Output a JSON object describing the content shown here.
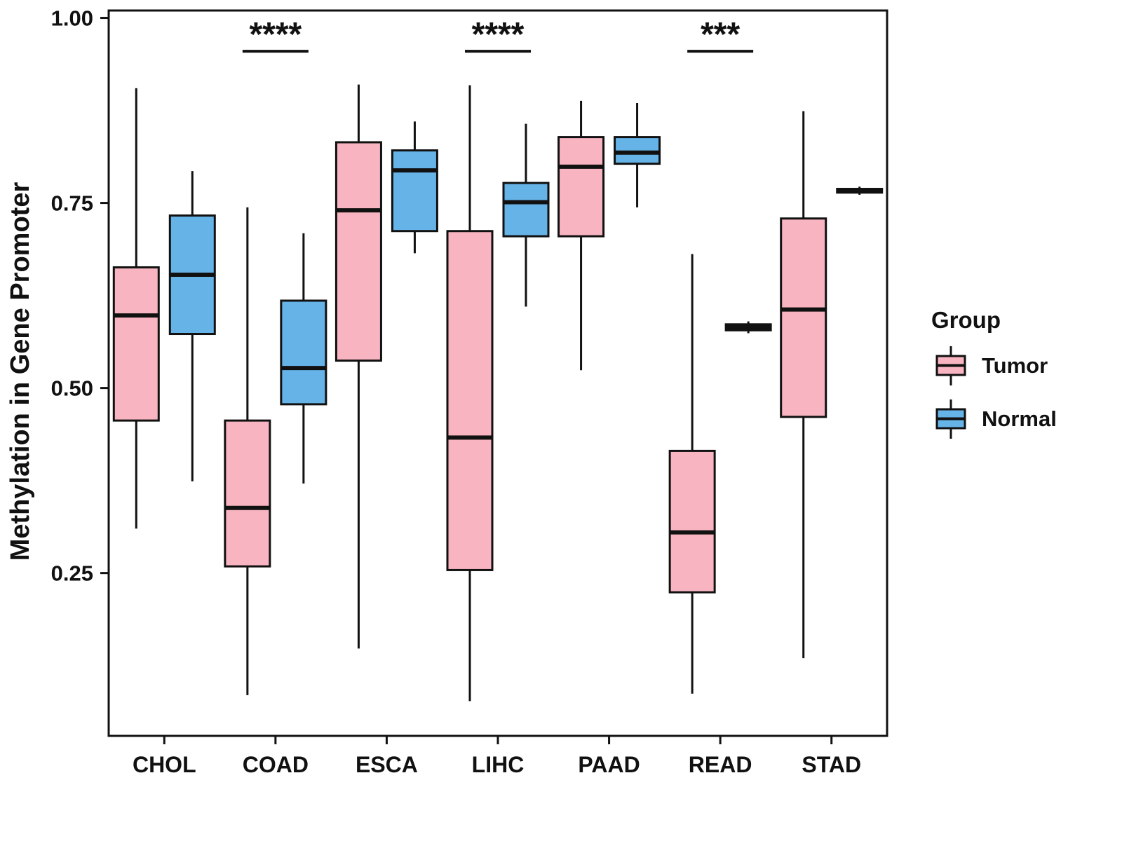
{
  "chart_data": {
    "type": "boxplot",
    "title": "",
    "xlabel": "",
    "ylabel": "Methylation in Gene Promoter",
    "categories": [
      "CHOL",
      "COAD",
      "ESCA",
      "LIHC",
      "PAAD",
      "READ",
      "STAD"
    ],
    "ytick_values": [
      0.25,
      0.5,
      0.75,
      1.0
    ],
    "ytick_labels": [
      "0.25",
      "0.50",
      "0.75",
      "1.00"
    ],
    "ylim": [
      0.03,
      1.01
    ],
    "grid": "off",
    "legend": {
      "title": "Group",
      "position": "right",
      "entries": [
        {
          "label": "Tumor",
          "color": "#F8B5C1"
        },
        {
          "label": "Normal",
          "color": "#66B3E8"
        }
      ]
    },
    "series": [
      {
        "name": "Tumor",
        "color": "#F8B5C1",
        "boxes": [
          {
            "category": "CHOL",
            "low": 0.31,
            "q1": 0.456,
            "median": 0.598,
            "q3": 0.663,
            "high": 0.905
          },
          {
            "category": "COAD",
            "low": 0.085,
            "q1": 0.259,
            "median": 0.338,
            "q3": 0.456,
            "high": 0.744
          },
          {
            "category": "ESCA",
            "low": 0.148,
            "q1": 0.537,
            "median": 0.74,
            "q3": 0.832,
            "high": 0.91
          },
          {
            "category": "LIHC",
            "low": 0.077,
            "q1": 0.254,
            "median": 0.433,
            "q3": 0.712,
            "high": 0.909
          },
          {
            "category": "PAAD",
            "low": 0.524,
            "q1": 0.705,
            "median": 0.799,
            "q3": 0.839,
            "high": 0.888
          },
          {
            "category": "READ",
            "low": 0.087,
            "q1": 0.224,
            "median": 0.305,
            "q3": 0.415,
            "high": 0.681
          },
          {
            "category": "STAD",
            "low": 0.135,
            "q1": 0.461,
            "median": 0.606,
            "q3": 0.729,
            "high": 0.874
          }
        ]
      },
      {
        "name": "Normal",
        "color": "#66B3E8",
        "boxes": [
          {
            "category": "CHOL",
            "low": 0.374,
            "q1": 0.573,
            "median": 0.653,
            "q3": 0.733,
            "high": 0.793
          },
          {
            "category": "COAD",
            "low": 0.371,
            "q1": 0.478,
            "median": 0.527,
            "q3": 0.618,
            "high": 0.709
          },
          {
            "category": "ESCA",
            "low": 0.682,
            "q1": 0.712,
            "median": 0.794,
            "q3": 0.821,
            "high": 0.86
          },
          {
            "category": "LIHC",
            "low": 0.61,
            "q1": 0.705,
            "median": 0.751,
            "q3": 0.777,
            "high": 0.857
          },
          {
            "category": "PAAD",
            "low": 0.744,
            "q1": 0.803,
            "median": 0.818,
            "q3": 0.839,
            "high": 0.885
          },
          {
            "category": "READ",
            "low": 0.574,
            "q1": 0.578,
            "median": 0.582,
            "q3": 0.586,
            "high": 0.59
          },
          {
            "category": "STAD",
            "low": 0.761,
            "q1": 0.764,
            "median": 0.766,
            "q3": 0.769,
            "high": 0.772
          }
        ]
      }
    ],
    "annotations": [
      {
        "category": "COAD",
        "label": "****",
        "line_y": 0.955
      },
      {
        "category": "LIHC",
        "label": "****",
        "line_y": 0.955
      },
      {
        "category": "READ",
        "label": "***",
        "line_y": 0.955
      }
    ]
  },
  "colors": {
    "box_outline": "#111111",
    "axis": "#111111",
    "text": "#111111",
    "panel_background": "#ffffff"
  }
}
